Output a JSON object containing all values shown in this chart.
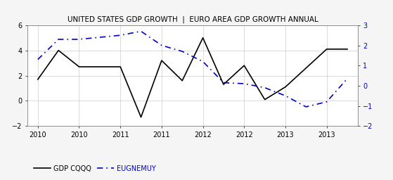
{
  "title": "UNITED STATES GDP GROWTH  |  EURO AREA GDP GROWTH ANNUAL",
  "gdp_x": [
    0,
    1,
    2,
    3,
    4,
    5,
    6,
    7,
    8,
    9,
    10,
    11,
    12,
    13,
    14,
    15
  ],
  "gdp_y": [
    1.7,
    4.0,
    2.7,
    2.7,
    2.7,
    -1.3,
    3.2,
    1.6,
    5.0,
    1.3,
    2.8,
    0.1,
    1.1,
    2.6,
    4.1,
    4.1
  ],
  "euro_x": [
    0,
    1,
    2,
    3,
    4,
    5,
    6,
    7,
    8,
    9,
    10,
    11,
    12,
    13,
    14,
    15
  ],
  "euro_y": [
    1.3,
    2.3,
    2.3,
    2.4,
    2.5,
    2.7,
    2.0,
    1.7,
    1.2,
    0.15,
    0.1,
    -0.1,
    -0.5,
    -1.05,
    -0.8,
    0.35
  ],
  "xlim": [
    -0.5,
    15.5
  ],
  "ylim_left": [
    -2,
    6
  ],
  "ylim_right": [
    -2,
    3
  ],
  "xtick_labels": [
    "2010",
    "2010",
    "2011",
    "2011",
    "2012",
    "2012",
    "2013",
    "2013"
  ],
  "xtick_positions": [
    0,
    2,
    4,
    6,
    8,
    10,
    12,
    14
  ],
  "yticks_left": [
    -2,
    0,
    2,
    4,
    6
  ],
  "yticks_right": [
    -2,
    -1,
    0,
    1,
    2,
    3
  ],
  "gdp_color": "#000000",
  "euro_color": "#0000cc",
  "bg_color": "#f5f5f5",
  "plot_bg_color": "#ffffff",
  "grid_color": "#cccccc",
  "legend_gdp": "GDP CQQQ",
  "legend_euro": "EUGNEMUY",
  "title_fontsize": 7.5,
  "axis_fontsize": 7,
  "legend_fontsize": 7
}
